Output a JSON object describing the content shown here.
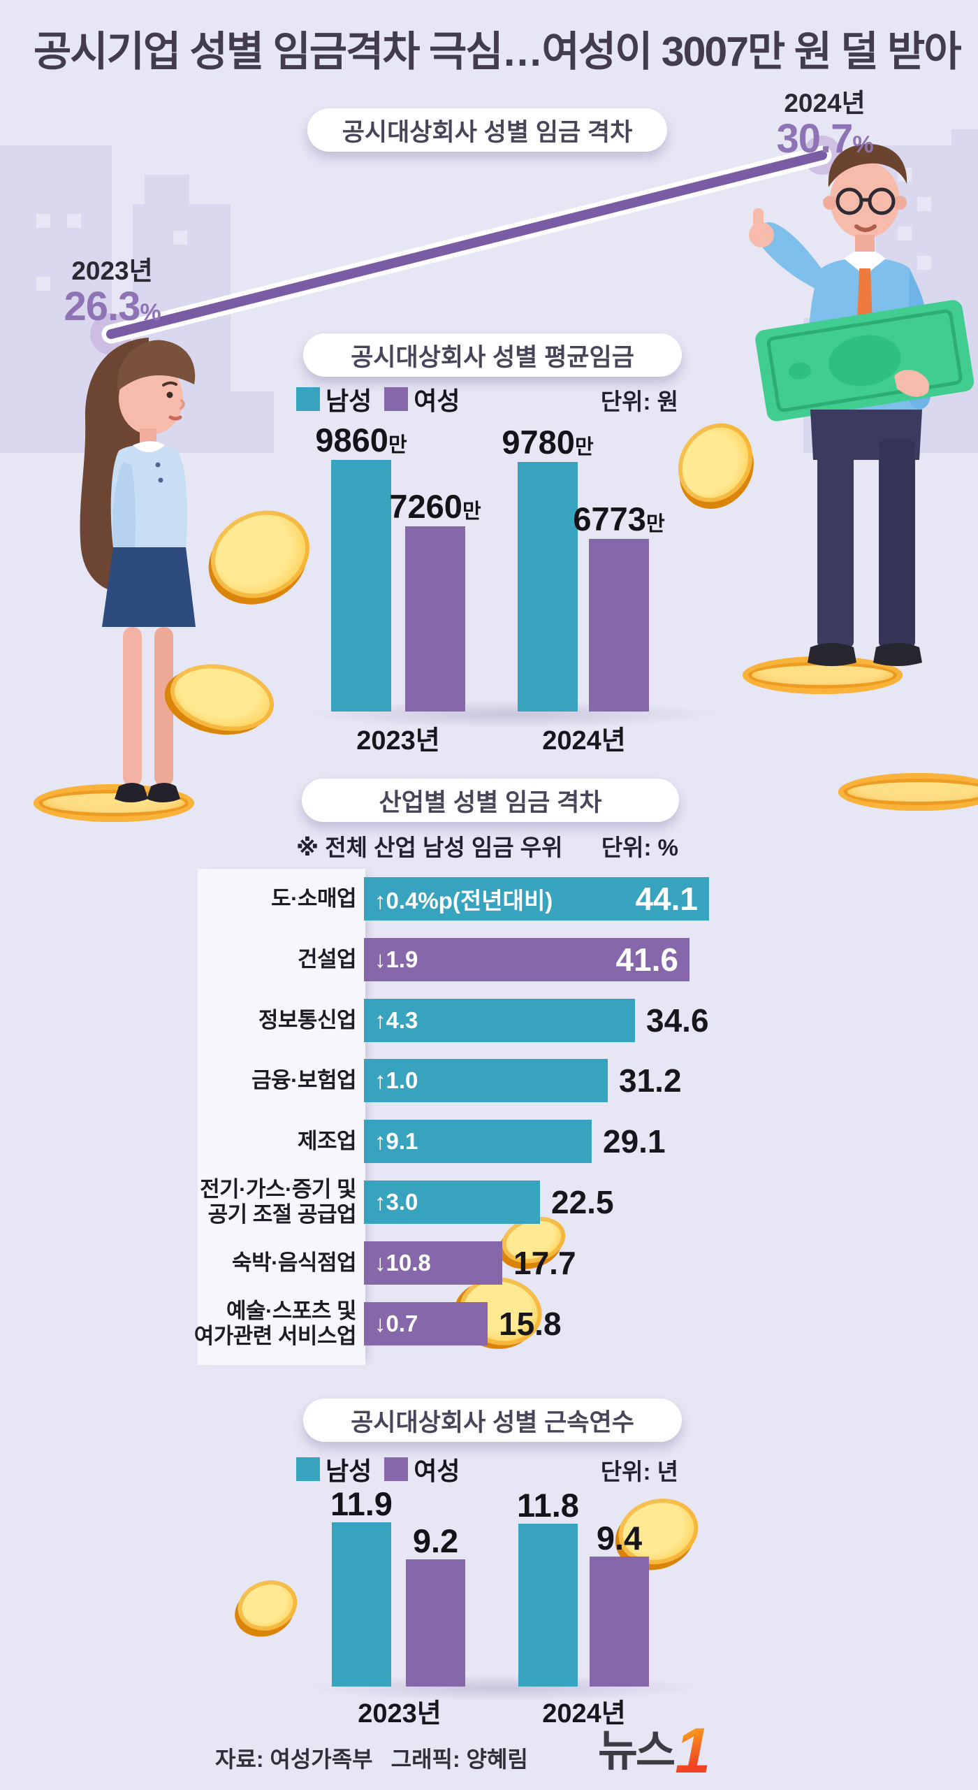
{
  "title": "공시기업 성별 임금격차 극심…여성이 3007만 원 덜 받아",
  "palette": {
    "male_teal": "#38A3BE",
    "female_purple": "#8667A9",
    "accent_purple": "#8E73B5",
    "line_purple": "#7A5CA4",
    "gold": "#F5A623",
    "background": "#E7E6F4"
  },
  "gap_section": {
    "heading": "공시대상회사 성별 임금 격차",
    "points": [
      {
        "year": "2023년",
        "value": "26.3",
        "unit": "%"
      },
      {
        "year": "2024년",
        "value": "30.7",
        "unit": "%"
      }
    ]
  },
  "wage_section": {
    "heading": "공시대상회사 성별 평균임금",
    "legend_male": "남성",
    "legend_female": "여성",
    "unit_label": "단위: 원",
    "value_suffix": "만",
    "groups": [
      {
        "year": "2023년",
        "male": "9860",
        "female": "7260"
      },
      {
        "year": "2024년",
        "male": "9780",
        "female": "6773"
      }
    ]
  },
  "industry_section": {
    "heading": "산업별 성별 임금 격차",
    "note": "※ 전체 산업 남성 임금 우위",
    "unit_label": "단위: %",
    "rows": [
      {
        "label": "도·소매업",
        "change": "↑0.4%p(전년대비)",
        "value": "44.1",
        "color": "teal",
        "value_inside": true
      },
      {
        "label": "건설업",
        "change": "↓1.9",
        "value": "41.6",
        "color": "purple",
        "value_inside": true
      },
      {
        "label": "정보통신업",
        "change": "↑4.3",
        "value": "34.6",
        "color": "teal",
        "value_inside": false
      },
      {
        "label": "금융·보험업",
        "change": "↑1.0",
        "value": "31.2",
        "color": "teal",
        "value_inside": false
      },
      {
        "label": "제조업",
        "change": "↑9.1",
        "value": "29.1",
        "color": "teal",
        "value_inside": false
      },
      {
        "label": "전기·가스·증기 및\n공기 조절 공급업",
        "change": "↑3.0",
        "value": "22.5",
        "color": "teal",
        "value_inside": false
      },
      {
        "label": "숙박·음식점업",
        "change": "↓10.8",
        "value": "17.7",
        "color": "purple",
        "value_inside": false
      },
      {
        "label": "예술·스포츠 및\n여가관련 서비스업",
        "change": "↓0.7",
        "value": "15.8",
        "color": "purple",
        "value_inside": false
      }
    ]
  },
  "tenure_section": {
    "heading": "공시대상회사 성별 근속연수",
    "legend_male": "남성",
    "legend_female": "여성",
    "unit_label": "단위: 년",
    "groups": [
      {
        "year": "2023년",
        "male": "11.9",
        "female": "9.2"
      },
      {
        "year": "2024년",
        "male": "11.8",
        "female": "9.4"
      }
    ]
  },
  "footer": {
    "source": "자료: 여성가족부",
    "credit": "그래픽: 양혜림",
    "logo_text": "뉴스",
    "logo_number": "1"
  },
  "chart_data": [
    {
      "type": "line",
      "title": "공시대상회사 성별 임금 격차",
      "categories": [
        "2023년",
        "2024년"
      ],
      "values": [
        26.3,
        30.7
      ],
      "unit": "%",
      "legend_position": "none",
      "grid": false
    },
    {
      "type": "bar",
      "title": "공시대상회사 성별 평균임금",
      "categories": [
        "2023년",
        "2024년"
      ],
      "series": [
        {
          "name": "남성",
          "values": [
            9860,
            9780
          ]
        },
        {
          "name": "여성",
          "values": [
            7260,
            6773
          ]
        }
      ],
      "unit": "만 원",
      "ylim": [
        0,
        9860
      ],
      "legend_position": "top-left",
      "grid": false
    },
    {
      "type": "bar",
      "orientation": "horizontal",
      "title": "산업별 성별 임금 격차",
      "note": "※ 전체 산업 남성 임금 우위",
      "unit": "%",
      "categories": [
        "도·소매업",
        "건설업",
        "정보통신업",
        "금융·보험업",
        "제조업",
        "전기·가스·증기 및 공기 조절 공급업",
        "숙박·음식점업",
        "예술·스포츠 및 여가관련 서비스업"
      ],
      "values": [
        44.1,
        41.6,
        34.6,
        31.2,
        29.1,
        22.5,
        17.7,
        15.8
      ],
      "yoy_change": [
        "↑0.4%p(전년대비)",
        "↓1.9",
        "↑4.3",
        "↑1.0",
        "↑9.1",
        "↑3.0",
        "↓10.8",
        "↓0.7"
      ],
      "bar_color_meaning": "teal=전년대비 증가(↑), purple=전년대비 감소(↓)",
      "bar_colors": [
        "teal",
        "purple",
        "teal",
        "teal",
        "teal",
        "teal",
        "purple",
        "purple"
      ],
      "xlim": [
        0,
        44.1
      ],
      "grid": false
    },
    {
      "type": "bar",
      "title": "공시대상회사 성별 근속연수",
      "categories": [
        "2023년",
        "2024년"
      ],
      "series": [
        {
          "name": "남성",
          "values": [
            11.9,
            11.8
          ]
        },
        {
          "name": "여성",
          "values": [
            9.2,
            9.4
          ]
        }
      ],
      "unit": "년",
      "ylim": [
        0,
        11.9
      ],
      "legend_position": "top-left",
      "grid": false
    }
  ]
}
